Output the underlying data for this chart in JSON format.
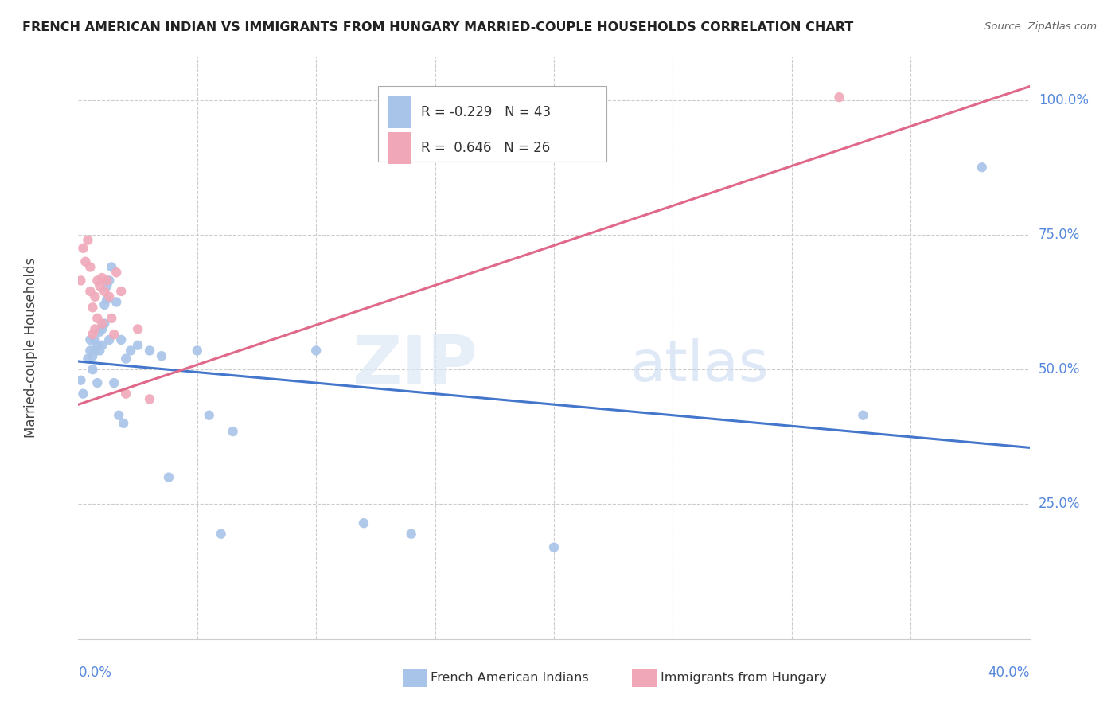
{
  "title": "FRENCH AMERICAN INDIAN VS IMMIGRANTS FROM HUNGARY MARRIED-COUPLE HOUSEHOLDS CORRELATION CHART",
  "source": "Source: ZipAtlas.com",
  "ylabel": "Married-couple Households",
  "xlim": [
    0.0,
    0.4
  ],
  "ylim": [
    0.0,
    1.08
  ],
  "yticks": [
    0.25,
    0.5,
    0.75,
    1.0
  ],
  "ytick_labels": [
    "25.0%",
    "50.0%",
    "75.0%",
    "100.0%"
  ],
  "xtick_labels": [
    "0.0%",
    "40.0%"
  ],
  "blue_label": "French American Indians",
  "pink_label": "Immigrants from Hungary",
  "blue_R": "-0.229",
  "blue_N": "43",
  "pink_R": "0.646",
  "pink_N": "26",
  "watermark_zip": "ZIP",
  "watermark_atlas": "atlas",
  "blue_color": "#a8c4e8",
  "pink_color": "#f0a8b8",
  "blue_line_color": "#4477cc",
  "pink_line_color": "#e06888",
  "title_color": "#222222",
  "right_axis_color": "#5588dd",
  "grid_color": "#cccccc",
  "blue_points_x": [
    0.001,
    0.002,
    0.004,
    0.005,
    0.005,
    0.006,
    0.006,
    0.007,
    0.007,
    0.008,
    0.008,
    0.009,
    0.009,
    0.01,
    0.01,
    0.011,
    0.011,
    0.012,
    0.012,
    0.013,
    0.013,
    0.014,
    0.015,
    0.016,
    0.017,
    0.018,
    0.019,
    0.02,
    0.022,
    0.025,
    0.03,
    0.035,
    0.038,
    0.05,
    0.055,
    0.06,
    0.065,
    0.1,
    0.12,
    0.14,
    0.2,
    0.33,
    0.38
  ],
  "blue_points_y": [
    0.48,
    0.455,
    0.52,
    0.535,
    0.555,
    0.5,
    0.525,
    0.535,
    0.555,
    0.545,
    0.475,
    0.535,
    0.57,
    0.545,
    0.575,
    0.585,
    0.62,
    0.63,
    0.655,
    0.555,
    0.665,
    0.69,
    0.475,
    0.625,
    0.415,
    0.555,
    0.4,
    0.52,
    0.535,
    0.545,
    0.535,
    0.525,
    0.3,
    0.535,
    0.415,
    0.195,
    0.385,
    0.535,
    0.215,
    0.195,
    0.17,
    0.415,
    0.875
  ],
  "pink_points_x": [
    0.001,
    0.002,
    0.003,
    0.004,
    0.005,
    0.005,
    0.006,
    0.006,
    0.007,
    0.007,
    0.008,
    0.008,
    0.009,
    0.01,
    0.01,
    0.011,
    0.012,
    0.013,
    0.014,
    0.015,
    0.016,
    0.018,
    0.02,
    0.025,
    0.03,
    0.32
  ],
  "pink_points_y": [
    0.665,
    0.725,
    0.7,
    0.74,
    0.645,
    0.69,
    0.565,
    0.615,
    0.575,
    0.635,
    0.595,
    0.665,
    0.655,
    0.585,
    0.67,
    0.645,
    0.665,
    0.635,
    0.595,
    0.565,
    0.68,
    0.645,
    0.455,
    0.575,
    0.445,
    1.005
  ],
  "blue_trendline_x": [
    0.0,
    0.4
  ],
  "blue_trendline_y": [
    0.515,
    0.355
  ],
  "pink_trendline_x": [
    0.0,
    0.4
  ],
  "pink_trendline_y": [
    0.435,
    1.025
  ]
}
